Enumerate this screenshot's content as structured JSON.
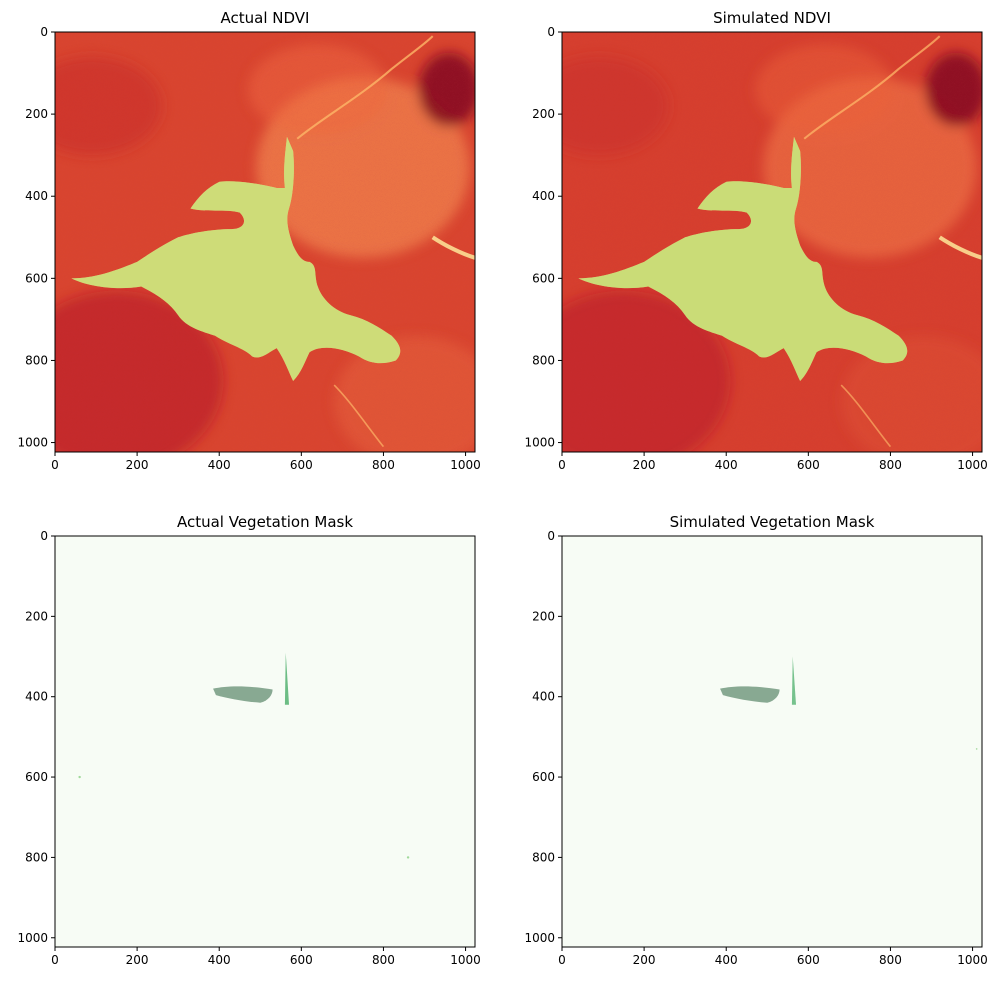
{
  "chart_data": [
    {
      "type": "heatmap",
      "title": "Actual NDVI",
      "colormap": "RdYlGn",
      "xlim": [
        0,
        1023
      ],
      "ylim": [
        1023,
        0
      ],
      "xticks": [
        0,
        200,
        400,
        600,
        800,
        1000
      ],
      "yticks": [
        0,
        200,
        400,
        600,
        800,
        1000
      ]
    },
    {
      "type": "heatmap",
      "title": "Simulated NDVI",
      "colormap": "RdYlGn",
      "xlim": [
        0,
        1023
      ],
      "ylim": [
        1023,
        0
      ],
      "xticks": [
        0,
        200,
        400,
        600,
        800,
        1000
      ],
      "yticks": [
        0,
        200,
        400,
        600,
        800,
        1000
      ]
    },
    {
      "type": "heatmap",
      "title": "Actual Vegetation Mask",
      "colormap": "Greens",
      "xlim": [
        0,
        1023
      ],
      "ylim": [
        1023,
        0
      ],
      "xticks": [
        0,
        200,
        400,
        600,
        800,
        1000
      ],
      "yticks": [
        0,
        200,
        400,
        600,
        800,
        1000
      ]
    },
    {
      "type": "heatmap",
      "title": "Simulated Vegetation Mask",
      "colormap": "Greens",
      "xlim": [
        0,
        1023
      ],
      "ylim": [
        1023,
        0
      ],
      "xticks": [
        0,
        200,
        400,
        600,
        800,
        1000
      ],
      "yticks": [
        0,
        200,
        400,
        600,
        800,
        1000
      ]
    }
  ],
  "colors": {
    "ndvi_background": "#d9452f",
    "ndvi_dark": "#b5192a",
    "ndvi_light": "#f58c52",
    "ndvi_yellow": "#fee89a",
    "ndvi_green_light": "#a6d96a",
    "ndvi_green": "#1a9850",
    "ndvi_green_dark": "#006837",
    "mask_background": "#f7fcf5",
    "mask_light": "#a1d99b",
    "mask_green": "#31a354",
    "mask_dark": "#00441b"
  }
}
